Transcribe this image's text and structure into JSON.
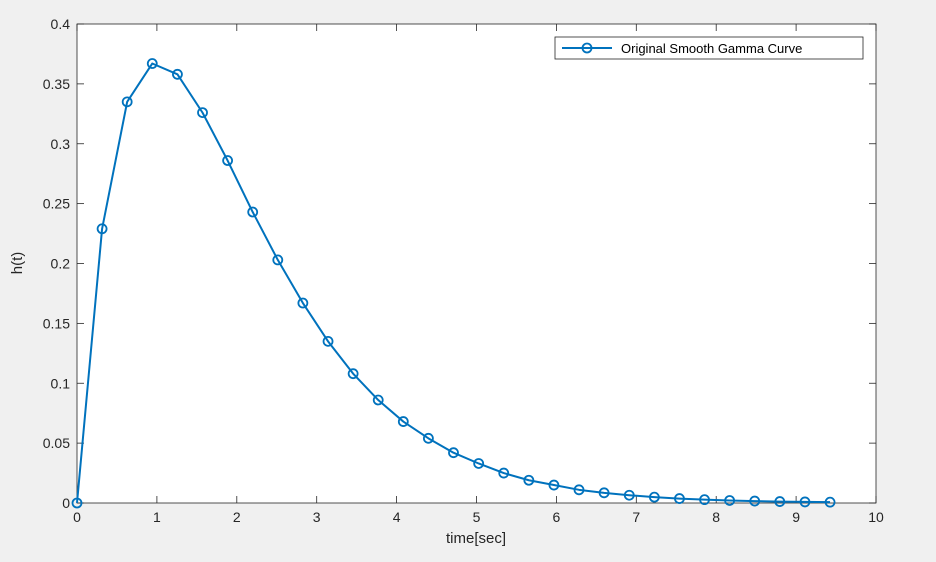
{
  "chart_data": {
    "type": "line",
    "title": "",
    "xlabel": "time[sec]",
    "ylabel": "h(t)",
    "xlim": [
      0,
      10
    ],
    "ylim": [
      0,
      0.4
    ],
    "x_ticks": [
      "0",
      "1",
      "2",
      "3",
      "4",
      "5",
      "6",
      "7",
      "8",
      "9",
      "10"
    ],
    "y_ticks": [
      "0",
      "0.05",
      "0.1",
      "0.15",
      "0.2",
      "0.25",
      "0.3",
      "0.35",
      "0.4"
    ],
    "grid": false,
    "legend_position": "top-right",
    "series": [
      {
        "name": "Original Smooth Gamma Curve",
        "color": "#0072BD",
        "marker": "circle",
        "x": [
          0,
          0.314,
          0.628,
          0.942,
          1.257,
          1.571,
          1.885,
          2.199,
          2.513,
          2.827,
          3.142,
          3.456,
          3.77,
          4.084,
          4.398,
          4.712,
          5.027,
          5.341,
          5.655,
          5.969,
          6.283,
          6.597,
          6.912,
          7.226,
          7.54,
          7.854,
          8.168,
          8.482,
          8.796,
          9.111,
          9.425
        ],
        "y": [
          0,
          0.229,
          0.335,
          0.367,
          0.358,
          0.326,
          0.286,
          0.243,
          0.203,
          0.167,
          0.135,
          0.108,
          0.086,
          0.068,
          0.054,
          0.042,
          0.033,
          0.025,
          0.019,
          0.015,
          0.011,
          0.0085,
          0.0065,
          0.0049,
          0.0037,
          0.0028,
          0.0021,
          0.0016,
          0.0012,
          0.0009,
          0.0007
        ]
      }
    ]
  }
}
